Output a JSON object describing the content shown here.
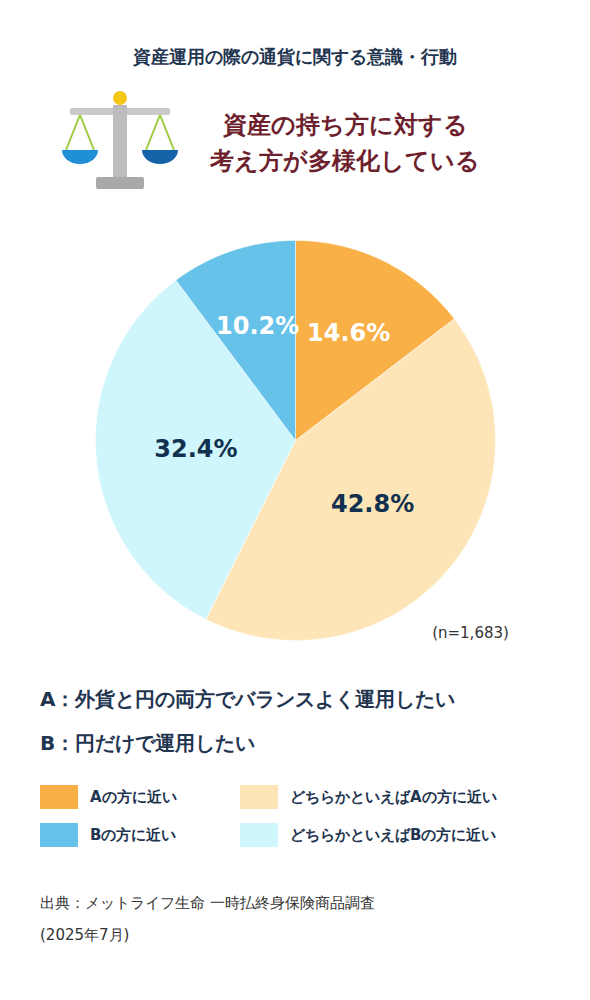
{
  "chart_data": {
    "type": "pie",
    "title": "資産運用の際の通貨に関する意識・行動",
    "subtitle": "資産の持ち方に対する\n考え方が多様化している",
    "categories": [
      "Aの方に近い",
      "どちらかといえばAの方に近い",
      "どちらかといえばBの方に近い",
      "Bの方に近い"
    ],
    "values": [
      14.6,
      42.8,
      32.4,
      10.2
    ],
    "value_labels": [
      "14.6%",
      "42.8%",
      "32.4%",
      "10.2%"
    ],
    "colors": [
      "#f9b046",
      "#fde5b8",
      "#cff6fc",
      "#66c2e8"
    ],
    "data_labels": true,
    "legend": "bottom",
    "annotations": [
      "(n=1,683)"
    ],
    "definitions": [
      "A：外貨と円の両方でバランスよく運用したい",
      "B：円だけで運用したい"
    ],
    "source": "出典：メットライフ生命 一時払終身保険商品調査\n(2025年7月)"
  }
}
